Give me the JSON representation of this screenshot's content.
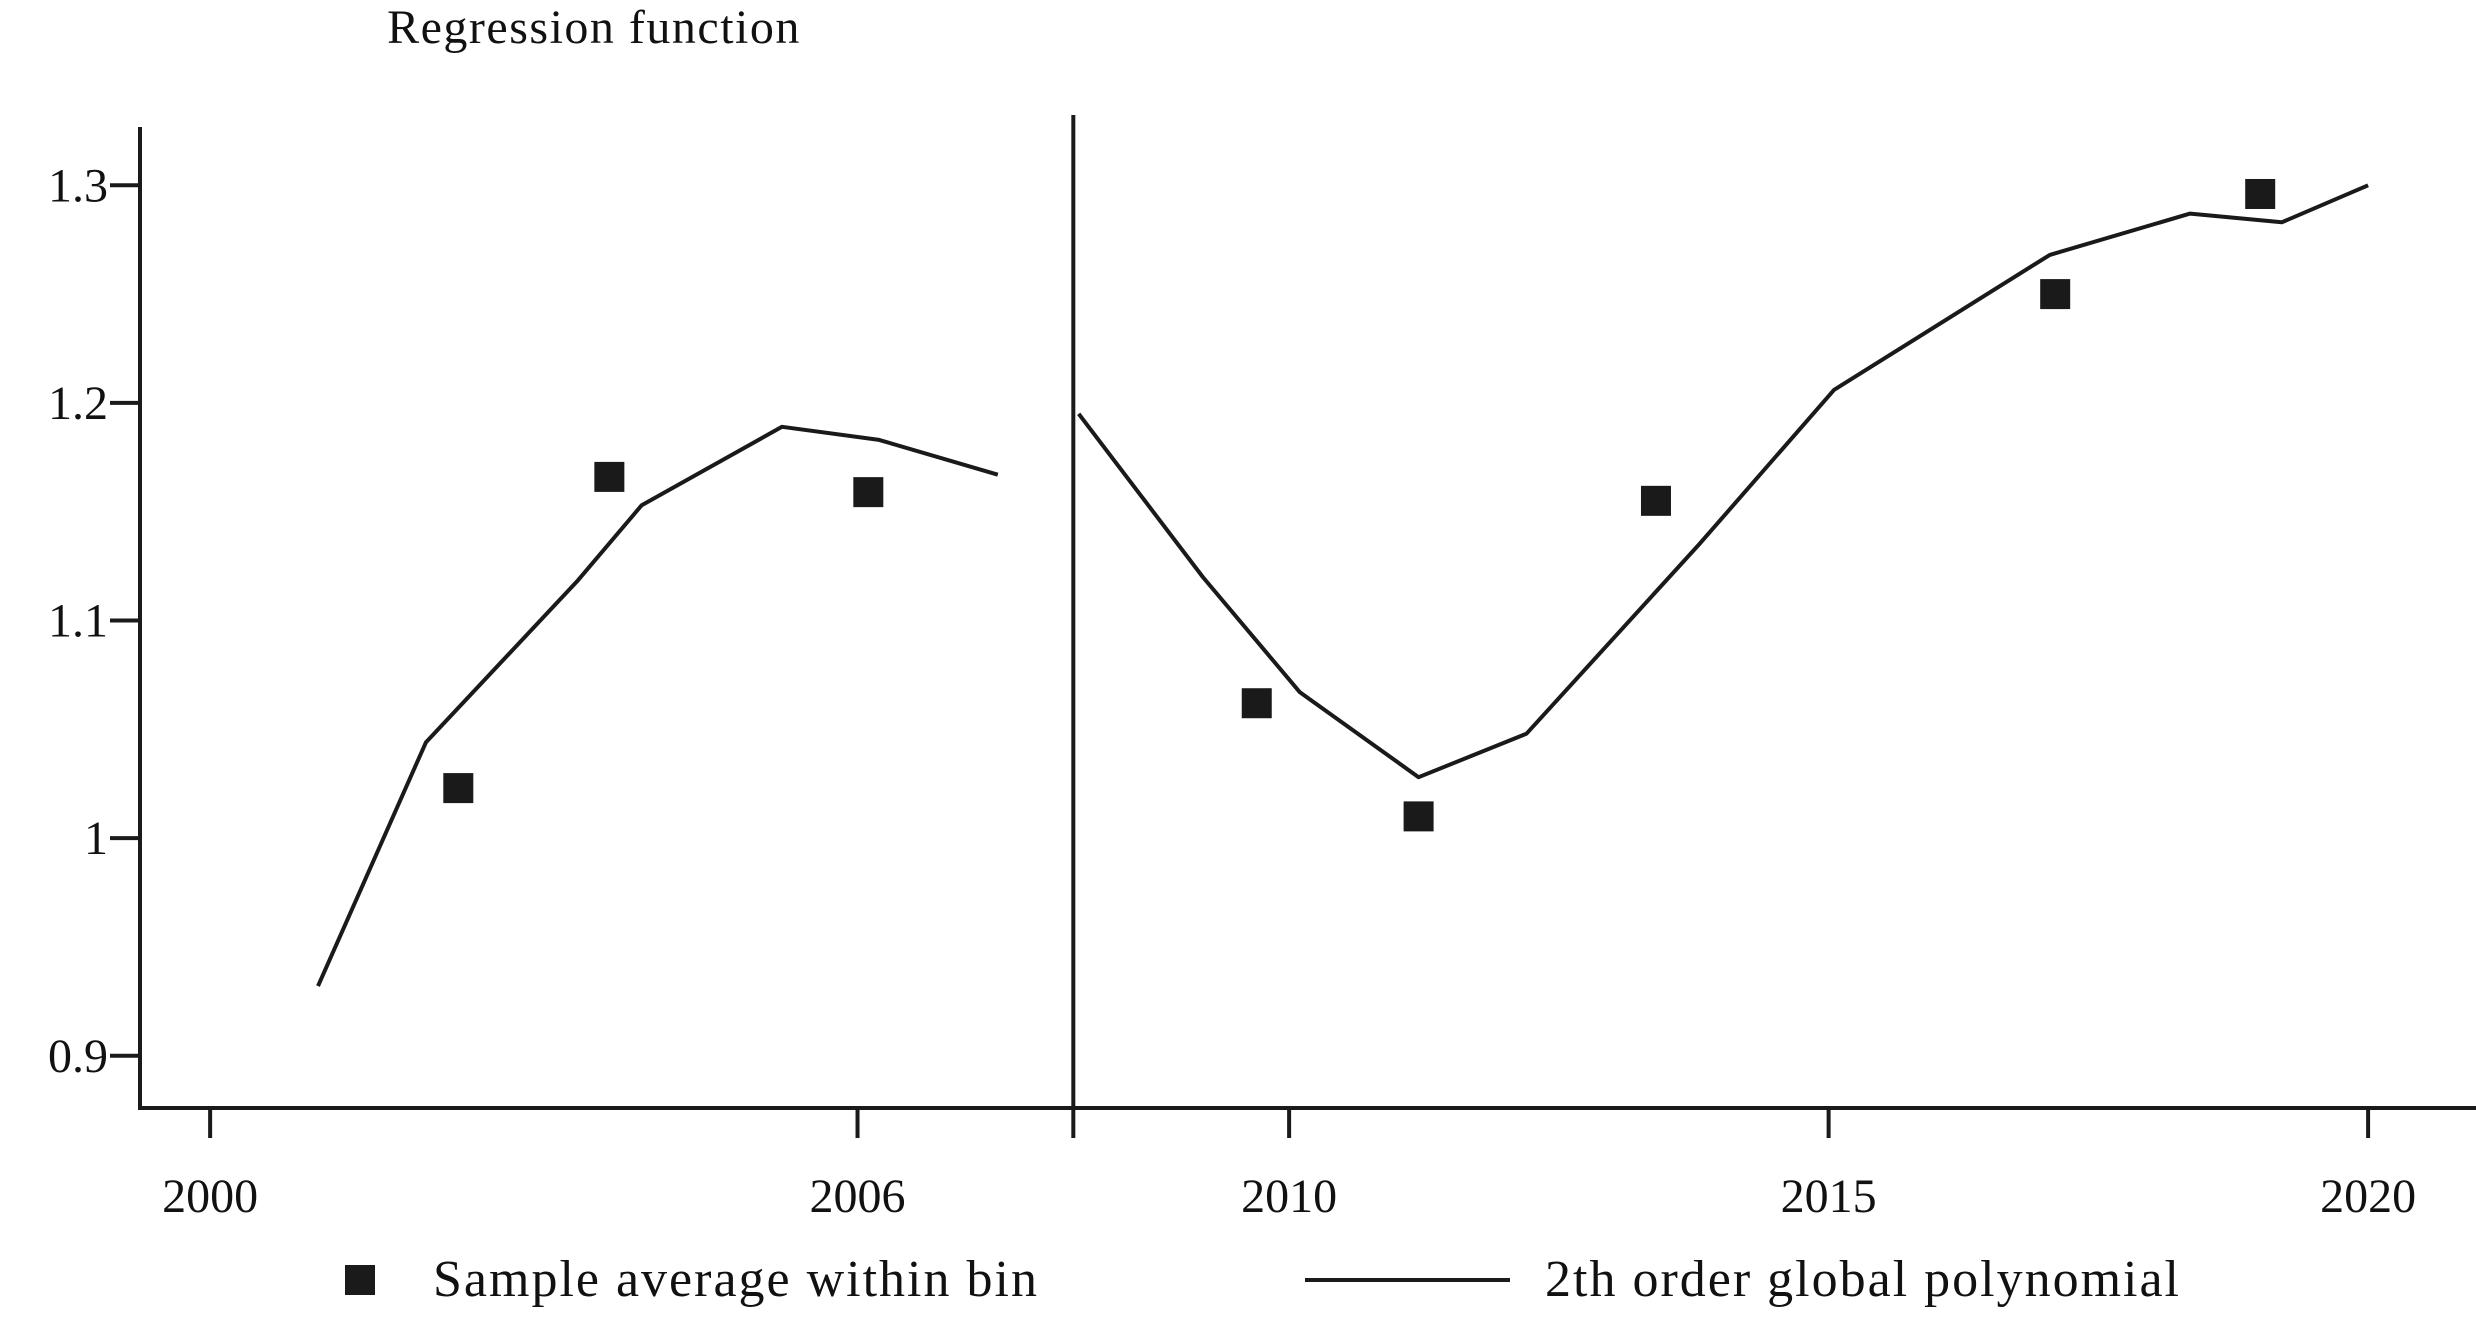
{
  "chart_data": {
    "type": "scatter",
    "title": "Regression function",
    "xlabel": "",
    "ylabel": "",
    "xlim": [
      1999.35,
      2021.0
    ],
    "ylim": [
      0.876,
      1.33
    ],
    "x_ticks": [
      2000,
      2006,
      2010,
      2015,
      2020
    ],
    "y_ticks": [
      0.9,
      1.0,
      1.1,
      1.2,
      1.3
    ],
    "y_tick_labels": [
      "0.9",
      "1",
      "1.1",
      "1.2",
      "1.3"
    ],
    "cutoff": 2008.0,
    "grid": false,
    "legend_position": "bottom",
    "series": [
      {
        "name": "Sample average within bin",
        "kind": "points",
        "marker": "square",
        "points": [
          {
            "x": 2002.3,
            "y": 1.023
          },
          {
            "x": 2003.7,
            "y": 1.166
          },
          {
            "x": 2006.1,
            "y": 1.159
          },
          {
            "x": 2009.7,
            "y": 1.062
          },
          {
            "x": 2011.2,
            "y": 1.01
          },
          {
            "x": 2013.4,
            "y": 1.155
          },
          {
            "x": 2017.1,
            "y": 1.25
          },
          {
            "x": 2019.0,
            "y": 1.296
          }
        ]
      },
      {
        "name": "2th order global polynomial",
        "kind": "line",
        "segments": [
          [
            {
              "x": 2001.0,
              "y": 0.932
            },
            {
              "x": 2002.0,
              "y": 1.044
            },
            {
              "x": 2003.4,
              "y": 1.118
            },
            {
              "x": 2004.0,
              "y": 1.153
            },
            {
              "x": 2005.3,
              "y": 1.189
            },
            {
              "x": 2006.2,
              "y": 1.183
            },
            {
              "x": 2007.3,
              "y": 1.167
            }
          ],
          [
            {
              "x": 2008.05,
              "y": 1.195
            },
            {
              "x": 2009.2,
              "y": 1.12
            },
            {
              "x": 2010.1,
              "y": 1.067
            },
            {
              "x": 2011.2,
              "y": 1.028
            },
            {
              "x": 2012.2,
              "y": 1.048
            },
            {
              "x": 2013.8,
              "y": 1.135
            },
            {
              "x": 2015.05,
              "y": 1.206
            },
            {
              "x": 2017.05,
              "y": 1.268
            },
            {
              "x": 2018.35,
              "y": 1.287
            },
            {
              "x": 2019.2,
              "y": 1.283
            },
            {
              "x": 2020.0,
              "y": 1.3
            }
          ]
        ]
      }
    ],
    "colors": {
      "ink": "#1a1a1a"
    }
  }
}
